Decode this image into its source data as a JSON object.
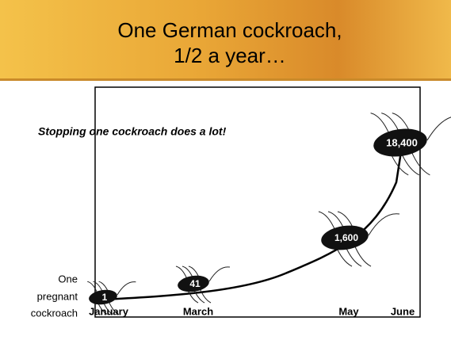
{
  "header": {
    "title_lines": [
      "One German cockroach,",
      "1/2 a year…"
    ]
  },
  "note": "Stopping one cockroach does a lot!",
  "start_label": [
    "One",
    "pregnant",
    "cockroach"
  ],
  "points": [
    {
      "month": "January",
      "count": "1"
    },
    {
      "month": "March",
      "count": "41"
    },
    {
      "month": "May",
      "count": "1,600"
    },
    {
      "month": "June",
      "count": "18,400"
    }
  ]
}
